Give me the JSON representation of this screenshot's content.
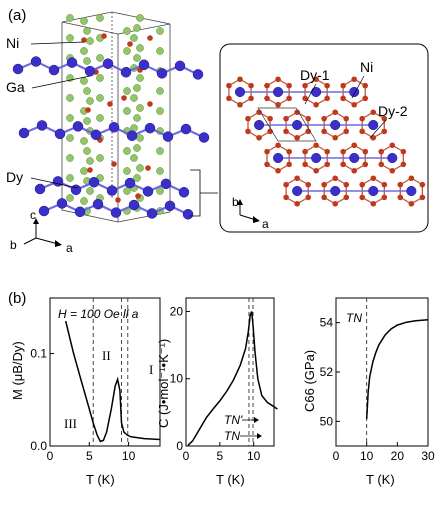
{
  "panel_a": {
    "label": "(a)",
    "left_labels": {
      "ni": "Ni",
      "ga": "Ga",
      "dy": "Dy"
    },
    "axes_left": {
      "c": "c",
      "b": "b",
      "a": "a"
    },
    "inset": {
      "dy1": "Dy-1",
      "ni": "Ni",
      "dy2": "Dy-2",
      "b": "b",
      "a": "a"
    },
    "colors": {
      "dy": "#3a2fc9",
      "ni": "#c0391d",
      "ga": "#93c56b",
      "bond_dy": "#6e6ae0",
      "bond_ni": "#c2573a"
    }
  },
  "panel_b": {
    "label": "(b)",
    "charts": [
      {
        "title_text": "H = 100 Oe ll a",
        "ylabel": "M  (μB/Dy)",
        "xlabel": "T  (K)",
        "xticks": [
          "0",
          "5",
          "10"
        ],
        "yticks": [
          "0.0",
          "0.1"
        ],
        "regions": [
          "III",
          "II",
          "I"
        ],
        "curve": [
          [
            2,
            0.135
          ],
          [
            3,
            0.1
          ],
          [
            4,
            0.07
          ],
          [
            5,
            0.04
          ],
          [
            5.5,
            0.025
          ],
          [
            6,
            0.012
          ],
          [
            6.4,
            0.005
          ],
          [
            6.8,
            0.006
          ],
          [
            7.2,
            0.015
          ],
          [
            7.8,
            0.04
          ],
          [
            8.3,
            0.065
          ],
          [
            8.6,
            0.072
          ],
          [
            8.9,
            0.06
          ],
          [
            9.1,
            0.025
          ],
          [
            9.4,
            0.015
          ],
          [
            9.8,
            0.012
          ],
          [
            10.3,
            0.01
          ],
          [
            12,
            0.008
          ],
          [
            14,
            0.007
          ]
        ]
      },
      {
        "ylabel": "C  (J•mol⁻¹•K⁻¹)",
        "xlabel": "T  (K)",
        "xticks": [
          "0",
          "5",
          "10"
        ],
        "yticks": [
          "0",
          "10",
          "20"
        ],
        "tn_prime": "TN'",
        "tn": "TN",
        "curve": [
          [
            0.3,
            0.1
          ],
          [
            1,
            0.8
          ],
          [
            2,
            2.5
          ],
          [
            3,
            4.2
          ],
          [
            4,
            5.5
          ],
          [
            5,
            6.7
          ],
          [
            6,
            8.1
          ],
          [
            7,
            9.8
          ],
          [
            8,
            12
          ],
          [
            8.8,
            14.5
          ],
          [
            9.2,
            17
          ],
          [
            9.5,
            19.5
          ],
          [
            9.7,
            20
          ],
          [
            9.9,
            18
          ],
          [
            10.2,
            14
          ],
          [
            10.6,
            10
          ],
          [
            11.2,
            7.5
          ],
          [
            12,
            6.5
          ],
          [
            13.5,
            5.5
          ]
        ]
      },
      {
        "ylabel": "C66 (GPa)",
        "xlabel": "T  (K)",
        "xticks": [
          "0",
          "10",
          "20",
          "30"
        ],
        "yticks": [
          "50",
          "52",
          "54"
        ],
        "tn": "TN",
        "curve": [
          [
            10,
            50.1
          ],
          [
            10.5,
            51.2
          ],
          [
            11,
            51.8
          ],
          [
            12,
            52.4
          ],
          [
            13,
            52.8
          ],
          [
            14,
            53.1
          ],
          [
            16,
            53.5
          ],
          [
            18,
            53.75
          ],
          [
            20,
            53.9
          ],
          [
            23,
            54.02
          ],
          [
            26,
            54.08
          ],
          [
            30,
            54.12
          ]
        ]
      }
    ]
  }
}
